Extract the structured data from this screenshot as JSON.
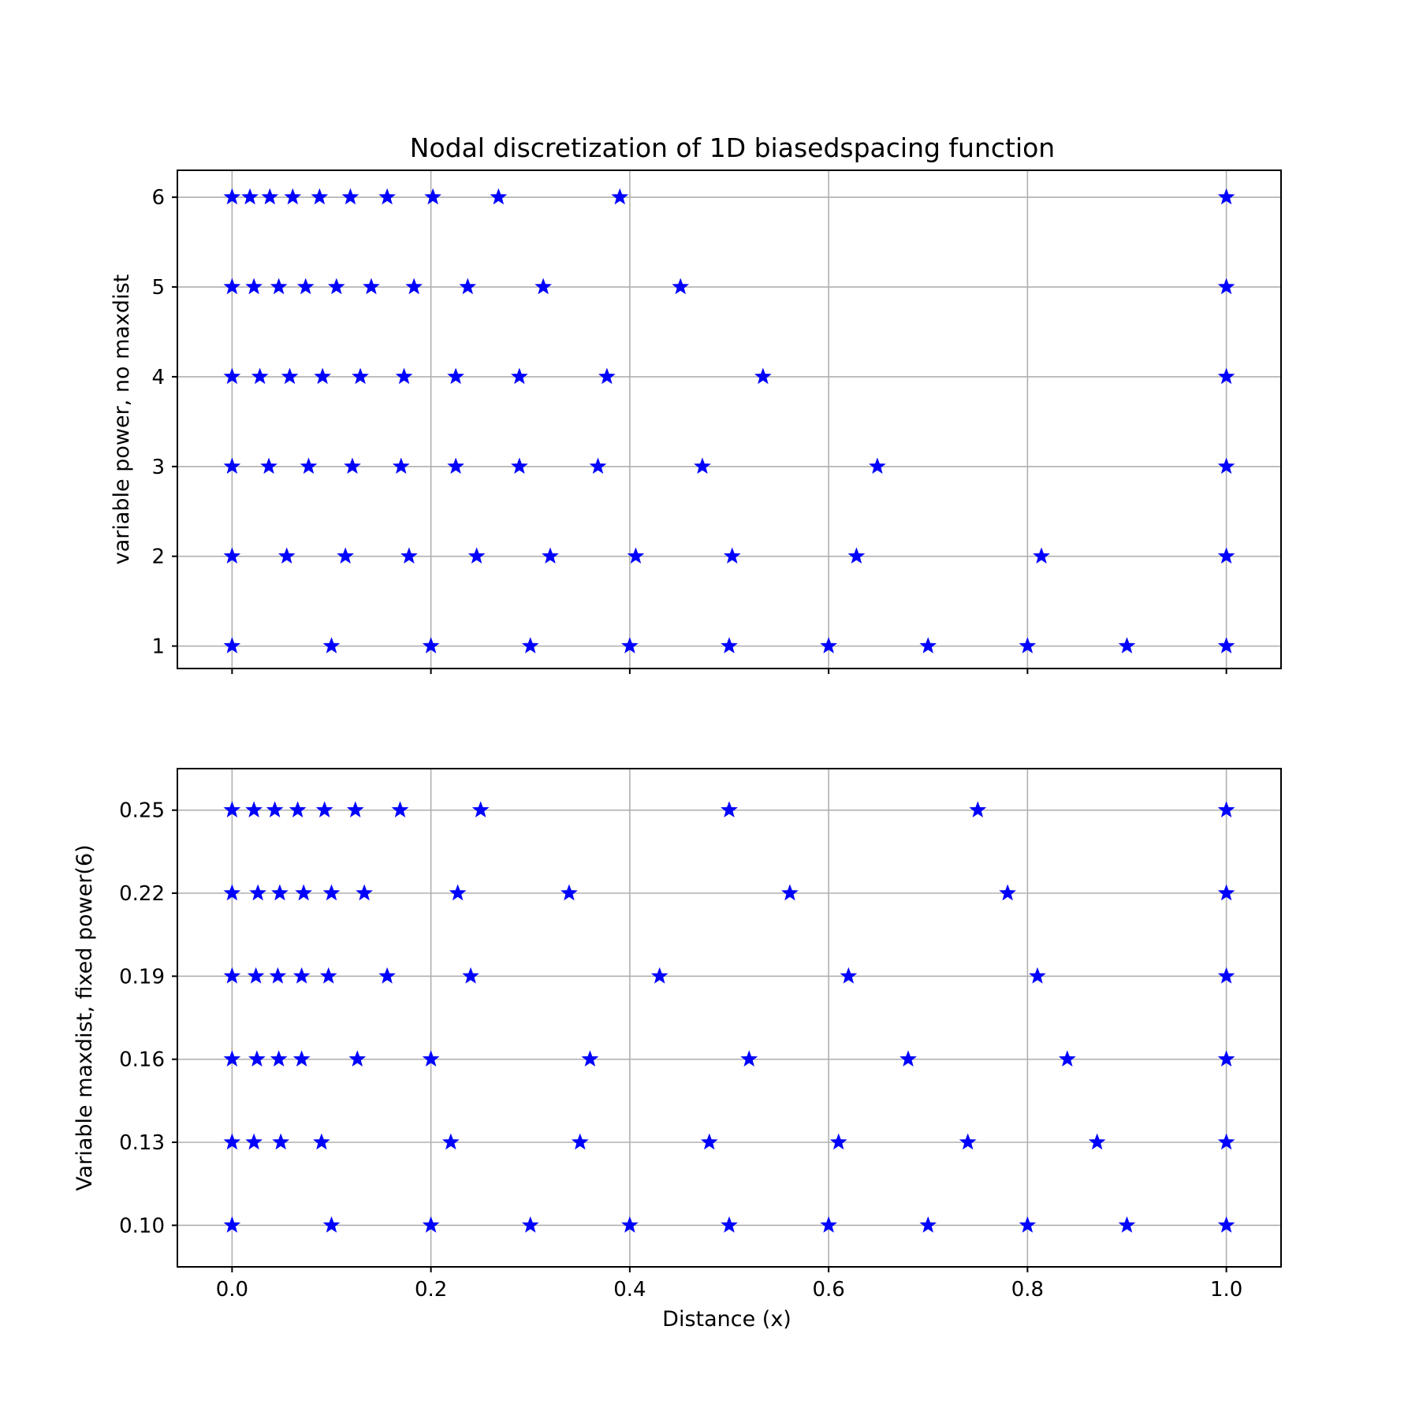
{
  "title": "Nodal discretization of 1D biasedspacing function",
  "xlabel": "Distance (x)",
  "marker_color": "#0000ff",
  "chart_data": [
    {
      "type": "scatter",
      "marker": "star",
      "ylabel": "variable power, no maxdist",
      "xlim": [
        -0.055,
        1.055
      ],
      "ylim": [
        0.75,
        6.3
      ],
      "xticks": [
        0.0,
        0.2,
        0.4,
        0.6,
        0.8,
        1.0
      ],
      "xtick_labels_shown": false,
      "yticks": [
        1,
        2,
        3,
        4,
        5,
        6
      ],
      "ytick_labels": [
        "1",
        "2",
        "3",
        "4",
        "5",
        "6"
      ],
      "grid": true,
      "series": [
        {
          "y": 6,
          "x": [
            0.0,
            0.018,
            0.038,
            0.061,
            0.088,
            0.119,
            0.156,
            0.202,
            0.268,
            0.39,
            1.0
          ]
        },
        {
          "y": 5,
          "x": [
            0.0,
            0.022,
            0.047,
            0.074,
            0.105,
            0.14,
            0.183,
            0.237,
            0.313,
            0.451,
            1.0
          ]
        },
        {
          "y": 4,
          "x": [
            0.0,
            0.028,
            0.058,
            0.091,
            0.129,
            0.173,
            0.225,
            0.289,
            0.377,
            0.534,
            1.0
          ]
        },
        {
          "y": 3,
          "x": [
            0.0,
            0.037,
            0.077,
            0.121,
            0.17,
            0.225,
            0.289,
            0.368,
            0.473,
            0.649,
            1.0
          ]
        },
        {
          "y": 2,
          "x": [
            0.0,
            0.055,
            0.114,
            0.178,
            0.246,
            0.32,
            0.406,
            0.503,
            0.628,
            0.814,
            1.0
          ]
        },
        {
          "y": 1,
          "x": [
            0.0,
            0.1,
            0.2,
            0.3,
            0.4,
            0.5,
            0.6,
            0.7,
            0.8,
            0.9,
            1.0
          ]
        }
      ]
    },
    {
      "type": "scatter",
      "marker": "star",
      "ylabel": "Variable maxdist, fixed power(6)",
      "xlim": [
        -0.055,
        1.055
      ],
      "ylim": [
        0.085,
        0.265
      ],
      "xticks": [
        0.0,
        0.2,
        0.4,
        0.6,
        0.8,
        1.0
      ],
      "xtick_labels": [
        "0.0",
        "0.2",
        "0.4",
        "0.6",
        "0.8",
        "1.0"
      ],
      "xtick_labels_shown": true,
      "yticks": [
        0.1,
        0.13,
        0.16,
        0.19,
        0.22,
        0.25
      ],
      "ytick_labels": [
        "0.10",
        "0.13",
        "0.16",
        "0.19",
        "0.22",
        "0.25"
      ],
      "grid": true,
      "series": [
        {
          "y": 0.25,
          "x": [
            0.0,
            0.022,
            0.043,
            0.066,
            0.093,
            0.124,
            0.169,
            0.25,
            0.5,
            0.75,
            1.0
          ]
        },
        {
          "y": 0.22,
          "x": [
            0.0,
            0.026,
            0.048,
            0.072,
            0.1,
            0.133,
            0.227,
            0.339,
            0.561,
            0.78,
            1.0
          ]
        },
        {
          "y": 0.19,
          "x": [
            0.0,
            0.024,
            0.046,
            0.07,
            0.097,
            0.156,
            0.24,
            0.43,
            0.62,
            0.81,
            1.0
          ]
        },
        {
          "y": 0.16,
          "x": [
            0.0,
            0.025,
            0.047,
            0.07,
            0.126,
            0.2,
            0.36,
            0.52,
            0.68,
            0.84,
            1.0
          ]
        },
        {
          "y": 0.13,
          "x": [
            0.0,
            0.022,
            0.049,
            0.09,
            0.22,
            0.35,
            0.48,
            0.61,
            0.74,
            0.87,
            1.0
          ]
        },
        {
          "y": 0.1,
          "x": [
            0.0,
            0.1,
            0.2,
            0.3,
            0.4,
            0.5,
            0.6,
            0.7,
            0.8,
            0.9,
            1.0
          ]
        }
      ]
    }
  ]
}
